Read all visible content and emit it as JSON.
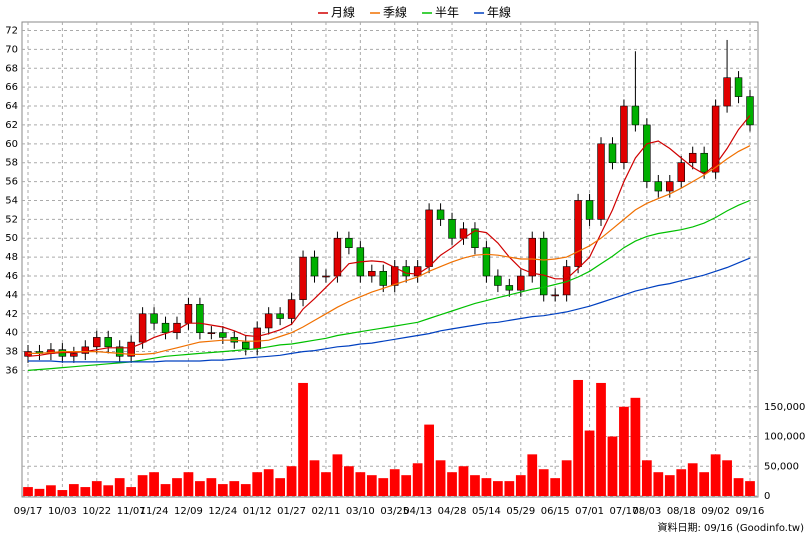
{
  "chart_data": [
    {
      "type": "candlestick",
      "categories": [
        "09/17",
        null,
        null,
        "10/03",
        null,
        null,
        "10/22",
        null,
        null,
        "11/07",
        null,
        "11/24",
        null,
        null,
        "12/09",
        null,
        null,
        "12/24",
        null,
        null,
        "01/12",
        null,
        null,
        "01/27",
        null,
        null,
        "02/11",
        null,
        null,
        "03/10",
        null,
        null,
        "03/25",
        null,
        "04/13",
        null,
        null,
        "04/28",
        null,
        null,
        "05/14",
        null,
        null,
        "05/29",
        null,
        null,
        "06/15",
        null,
        null,
        "07/01",
        null,
        null,
        "07/17",
        null,
        "08/03",
        null,
        null,
        "08/18",
        null,
        null,
        "09/02",
        null,
        null,
        "09/16"
      ],
      "open": [
        37.5,
        38,
        37.8,
        38.2,
        37.5,
        37.8,
        38.5,
        39.5,
        38.5,
        37.5,
        39,
        42,
        41,
        40,
        41,
        43,
        40,
        40,
        39.5,
        39,
        38.3,
        40.5,
        42,
        41.5,
        43.5,
        48,
        46,
        46,
        50,
        49,
        46,
        46.5,
        45,
        47,
        46,
        47,
        53,
        52,
        50,
        51,
        49,
        46,
        45,
        44.5,
        46,
        50,
        44,
        44,
        47,
        54,
        52,
        60,
        58,
        64,
        62,
        56,
        55,
        56,
        58,
        59,
        57,
        64,
        67,
        65
      ],
      "high": [
        38.7,
        38.7,
        38.9,
        38.9,
        38.5,
        39.2,
        40.2,
        40.2,
        39.2,
        39.7,
        42.7,
        42.7,
        41.7,
        41.7,
        43.7,
        43.7,
        40.7,
        40.7,
        40.2,
        39.7,
        41.2,
        42.7,
        42.7,
        44.2,
        48.7,
        48.7,
        46.7,
        50.7,
        50.7,
        49.7,
        47.2,
        47.2,
        47.7,
        47.7,
        47.7,
        53.7,
        53.7,
        52.7,
        51.7,
        51.7,
        49.7,
        46.7,
        45.7,
        46.7,
        50.7,
        50.7,
        44.7,
        47.7,
        54.7,
        54.7,
        60.7,
        60.7,
        64.7,
        69.8,
        62.7,
        56.7,
        56.7,
        58.7,
        59.7,
        59.7,
        64.7,
        71,
        67.7,
        65.7
      ],
      "low": [
        36.8,
        37.1,
        37.1,
        36.8,
        36.8,
        37.1,
        37.8,
        37.8,
        36.8,
        36.8,
        38.3,
        40.3,
        39.3,
        39.3,
        40.3,
        39.3,
        39.3,
        38.8,
        38.3,
        37.6,
        37.6,
        39.8,
        40.8,
        40.8,
        42.8,
        45.3,
        45.3,
        45.3,
        48.3,
        45.3,
        45.3,
        44.3,
        44.3,
        45.3,
        45.3,
        46.3,
        51.3,
        49.3,
        49.3,
        48.3,
        45.3,
        44.3,
        43.8,
        43.8,
        45.3,
        43.3,
        43.3,
        43.3,
        46.3,
        51.3,
        51.3,
        57.3,
        57.3,
        61.3,
        55.3,
        54.3,
        54.3,
        55.3,
        57.3,
        56.3,
        56.3,
        63.3,
        64.3,
        61.3
      ],
      "close": [
        38,
        37.8,
        38.2,
        37.5,
        37.8,
        38.5,
        39.5,
        38.5,
        37.5,
        39,
        42,
        41,
        40,
        41,
        43,
        40,
        40,
        39.5,
        39,
        38.3,
        40.5,
        42,
        41.5,
        43.5,
        48,
        46,
        46,
        50,
        49,
        46,
        46.5,
        45,
        47,
        46,
        47,
        53,
        52,
        50,
        51,
        49,
        46,
        45,
        44.5,
        46,
        50,
        44,
        44,
        47,
        54,
        52,
        60,
        58,
        64,
        62,
        56,
        55,
        56,
        58,
        59,
        57,
        64,
        67,
        65,
        62
      ],
      "up_color": "#e00000",
      "down_color": "#00b000",
      "series": [
        {
          "name": "月線",
          "color": "#d00000",
          "values": [
            37.5,
            37.6,
            37.8,
            37.9,
            37.9,
            38,
            38.2,
            38.4,
            38.4,
            38.4,
            38.9,
            39.5,
            39.9,
            40.3,
            41,
            41,
            40.8,
            40.6,
            40.2,
            39.7,
            39.6,
            39.9,
            40.3,
            40.9,
            42.5,
            43.6,
            44.8,
            46,
            47.3,
            47.5,
            47.6,
            47.5,
            46.9,
            46.3,
            46.2,
            47,
            48.2,
            49,
            50,
            50.8,
            50.6,
            49.5,
            48,
            46.8,
            46.3,
            46.1,
            45.7,
            45.7,
            46.8,
            48,
            50.5,
            53,
            56,
            58.5,
            60,
            60.3,
            59.5,
            58.5,
            57.5,
            56.8,
            57.8,
            59.5,
            61.5,
            63
          ]
        },
        {
          "name": "季線",
          "color": "#f07000",
          "values": [
            37.8,
            37.8,
            37.9,
            38,
            38,
            38,
            38,
            37.9,
            37.8,
            37.7,
            37.7,
            37.8,
            38.1,
            38.4,
            38.7,
            39,
            39.1,
            39.2,
            39.2,
            39.1,
            39.1,
            39.2,
            39.6,
            40,
            40.6,
            41.3,
            42,
            42.7,
            43.3,
            43.8,
            44.3,
            44.7,
            45.1,
            45.5,
            45.9,
            46.5,
            47,
            47.5,
            47.9,
            48.2,
            48.3,
            48.2,
            48,
            47.8,
            47.8,
            47.7,
            47.8,
            48,
            48.6,
            49.2,
            50,
            51,
            52,
            53,
            53.7,
            54.2,
            54.7,
            55.3,
            56,
            56.7,
            57.5,
            58.4,
            59.2,
            59.8
          ]
        },
        {
          "name": "半年",
          "color": "#00c000",
          "values": [
            36,
            36.1,
            36.2,
            36.3,
            36.4,
            36.5,
            36.6,
            36.7,
            36.8,
            36.9,
            37.1,
            37.3,
            37.5,
            37.6,
            37.7,
            37.8,
            37.9,
            38,
            38.1,
            38.2,
            38.3,
            38.5,
            38.7,
            38.8,
            39,
            39.2,
            39.4,
            39.7,
            39.9,
            40.1,
            40.3,
            40.5,
            40.7,
            40.9,
            41.1,
            41.5,
            41.9,
            42.3,
            42.7,
            43.1,
            43.4,
            43.7,
            44,
            44.3,
            44.6,
            44.8,
            45.1,
            45.4,
            45.9,
            46.5,
            47.3,
            48.1,
            49,
            49.7,
            50.2,
            50.5,
            50.7,
            50.9,
            51.2,
            51.6,
            52.2,
            52.9,
            53.5,
            54
          ]
        },
        {
          "name": "年線",
          "color": "#0040c0",
          "values": [
            37,
            37,
            37,
            36.9,
            36.9,
            36.9,
            36.9,
            36.9,
            36.9,
            36.9,
            36.9,
            36.9,
            37,
            37,
            37,
            37,
            37.1,
            37.1,
            37.2,
            37.3,
            37.4,
            37.5,
            37.6,
            37.8,
            38,
            38.1,
            38.3,
            38.5,
            38.6,
            38.8,
            38.9,
            39.1,
            39.3,
            39.5,
            39.7,
            39.9,
            40.2,
            40.4,
            40.6,
            40.8,
            41,
            41.1,
            41.3,
            41.5,
            41.7,
            41.8,
            42,
            42.2,
            42.5,
            42.8,
            43.2,
            43.6,
            44,
            44.4,
            44.7,
            45,
            45.2,
            45.5,
            45.8,
            46.1,
            46.5,
            46.9,
            47.4,
            47.9
          ]
        }
      ],
      "ylim": [
        35.2,
        72.9
      ],
      "yticks": [
        36,
        38,
        40,
        42,
        44,
        46,
        48,
        50,
        52,
        54,
        56,
        58,
        60,
        62,
        64,
        66,
        68,
        70,
        72
      ],
      "grid": true
    },
    {
      "type": "bar",
      "color": "#ff0000",
      "values": [
        15000,
        12000,
        18000,
        10000,
        20000,
        15000,
        25000,
        18000,
        30000,
        15000,
        35000,
        40000,
        20000,
        30000,
        40000,
        25000,
        30000,
        20000,
        25000,
        20000,
        40000,
        45000,
        30000,
        50000,
        190000,
        60000,
        40000,
        70000,
        50000,
        40000,
        35000,
        30000,
        45000,
        35000,
        55000,
        120000,
        60000,
        40000,
        50000,
        35000,
        30000,
        25000,
        25000,
        35000,
        70000,
        45000,
        30000,
        60000,
        195000,
        110000,
        190000,
        100000,
        150000,
        165000,
        60000,
        40000,
        35000,
        45000,
        55000,
        40000,
        70000,
        60000,
        30000,
        25000
      ],
      "ylim": [
        0,
        200000
      ],
      "yticks": [
        0,
        {
          "value": 50000,
          "label": "50,000"
        },
        {
          "value": 100000,
          "label": "100,000"
        },
        {
          "value": 150000,
          "label": "150,000"
        }
      ],
      "grid": true,
      "source": "資料日期: 09/16 (Goodinfo.tw)"
    }
  ]
}
